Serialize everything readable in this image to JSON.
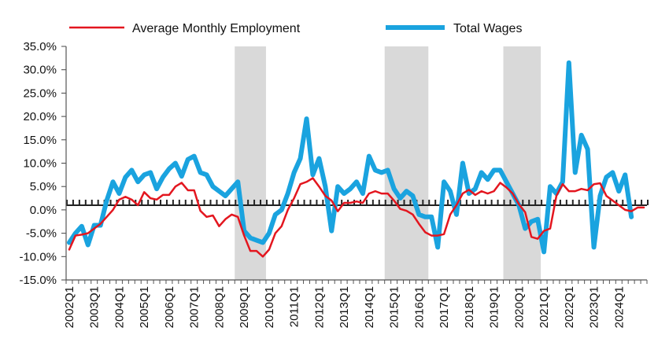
{
  "chart_data": {
    "type": "line",
    "title": "",
    "xlabel": "",
    "ylabel": "",
    "ylim": [
      -0.15,
      0.35
    ],
    "yticks": [
      -0.15,
      -0.1,
      -0.05,
      0.0,
      0.05,
      0.1,
      0.15,
      0.2,
      0.25,
      0.3,
      0.35
    ],
    "ytick_labels": [
      "-15.0%",
      "-10.0%",
      "-5.0%",
      "0.0%",
      "5.0%",
      "10.0%",
      "15.0%",
      "20.0%",
      "25.0%",
      "30.0%",
      "35.0%"
    ],
    "x_tick_labels": [
      "2002Q1",
      "2003Q1",
      "2004Q1",
      "2005Q1",
      "2006Q1",
      "2007Q1",
      "2008Q1",
      "2009Q1",
      "2010Q1",
      "2011Q1",
      "2012Q1",
      "2013Q1",
      "2014Q1",
      "2015Q1",
      "2016Q1",
      "2017Q1",
      "2018Q1",
      "2019Q1",
      "2020Q1",
      "2021Q1",
      "2022Q1",
      "2023Q1",
      "2024Q1"
    ],
    "quarters_per_tick": 4,
    "reference_line": {
      "value": 0.01,
      "style": "dotted"
    },
    "shaded_periods": [
      {
        "start": "2008Q4",
        "end": "2009Q4"
      },
      {
        "start": "2014Q4",
        "end": "2016Q2"
      },
      {
        "start": "2019Q3",
        "end": "2020Q4"
      }
    ],
    "legend_position": "top",
    "series": [
      {
        "name": "Average Monthly Employment",
        "color": "#e3161f",
        "values": [
          -0.085,
          -0.055,
          -0.053,
          -0.05,
          -0.04,
          -0.03,
          -0.015,
          0.0,
          0.022,
          0.028,
          0.022,
          0.01,
          0.038,
          0.025,
          0.022,
          0.032,
          0.032,
          0.05,
          0.058,
          0.042,
          0.042,
          -0.002,
          -0.015,
          -0.012,
          -0.035,
          -0.02,
          -0.01,
          -0.015,
          -0.055,
          -0.088,
          -0.088,
          -0.1,
          -0.085,
          -0.05,
          -0.035,
          0.0,
          0.025,
          0.055,
          0.06,
          0.068,
          0.05,
          0.03,
          0.02,
          -0.003,
          0.015,
          0.015,
          0.018,
          0.015,
          0.035,
          0.04,
          0.035,
          0.035,
          0.02,
          0.002,
          -0.002,
          -0.01,
          -0.03,
          -0.048,
          -0.055,
          -0.055,
          -0.052,
          -0.01,
          0.01,
          0.035,
          0.043,
          0.032,
          0.04,
          0.035,
          0.04,
          0.058,
          0.048,
          0.035,
          0.012,
          -0.005,
          -0.058,
          -0.062,
          -0.045,
          -0.04,
          0.03,
          0.055,
          0.04,
          0.04,
          0.045,
          0.042,
          0.055,
          0.057,
          0.03,
          0.02,
          0.01,
          0.0,
          -0.003,
          0.005,
          0.005
        ]
      },
      {
        "name": "Total Wages",
        "color": "#1aa3df",
        "values": [
          -0.07,
          -0.05,
          -0.035,
          -0.075,
          -0.033,
          -0.033,
          0.02,
          0.06,
          0.035,
          0.07,
          0.085,
          0.06,
          0.075,
          0.08,
          0.045,
          0.07,
          0.088,
          0.1,
          0.072,
          0.108,
          0.115,
          0.08,
          0.075,
          0.05,
          0.04,
          0.03,
          0.045,
          0.06,
          -0.045,
          -0.06,
          -0.065,
          -0.07,
          -0.05,
          -0.01,
          0.0,
          0.035,
          0.08,
          0.11,
          0.195,
          0.075,
          0.11,
          0.05,
          -0.045,
          0.05,
          0.035,
          0.045,
          0.06,
          0.035,
          0.115,
          0.085,
          0.08,
          0.085,
          0.045,
          0.025,
          0.04,
          0.03,
          -0.01,
          -0.015,
          -0.015,
          -0.08,
          0.06,
          0.04,
          -0.01,
          0.1,
          0.035,
          0.045,
          0.08,
          0.065,
          0.085,
          0.085,
          0.06,
          0.035,
          0.01,
          -0.04,
          -0.025,
          -0.02,
          -0.09,
          0.05,
          0.035,
          0.06,
          0.315,
          0.08,
          0.16,
          0.13,
          -0.08,
          0.03,
          0.07,
          0.08,
          0.04,
          0.075,
          -0.015
        ]
      }
    ]
  }
}
